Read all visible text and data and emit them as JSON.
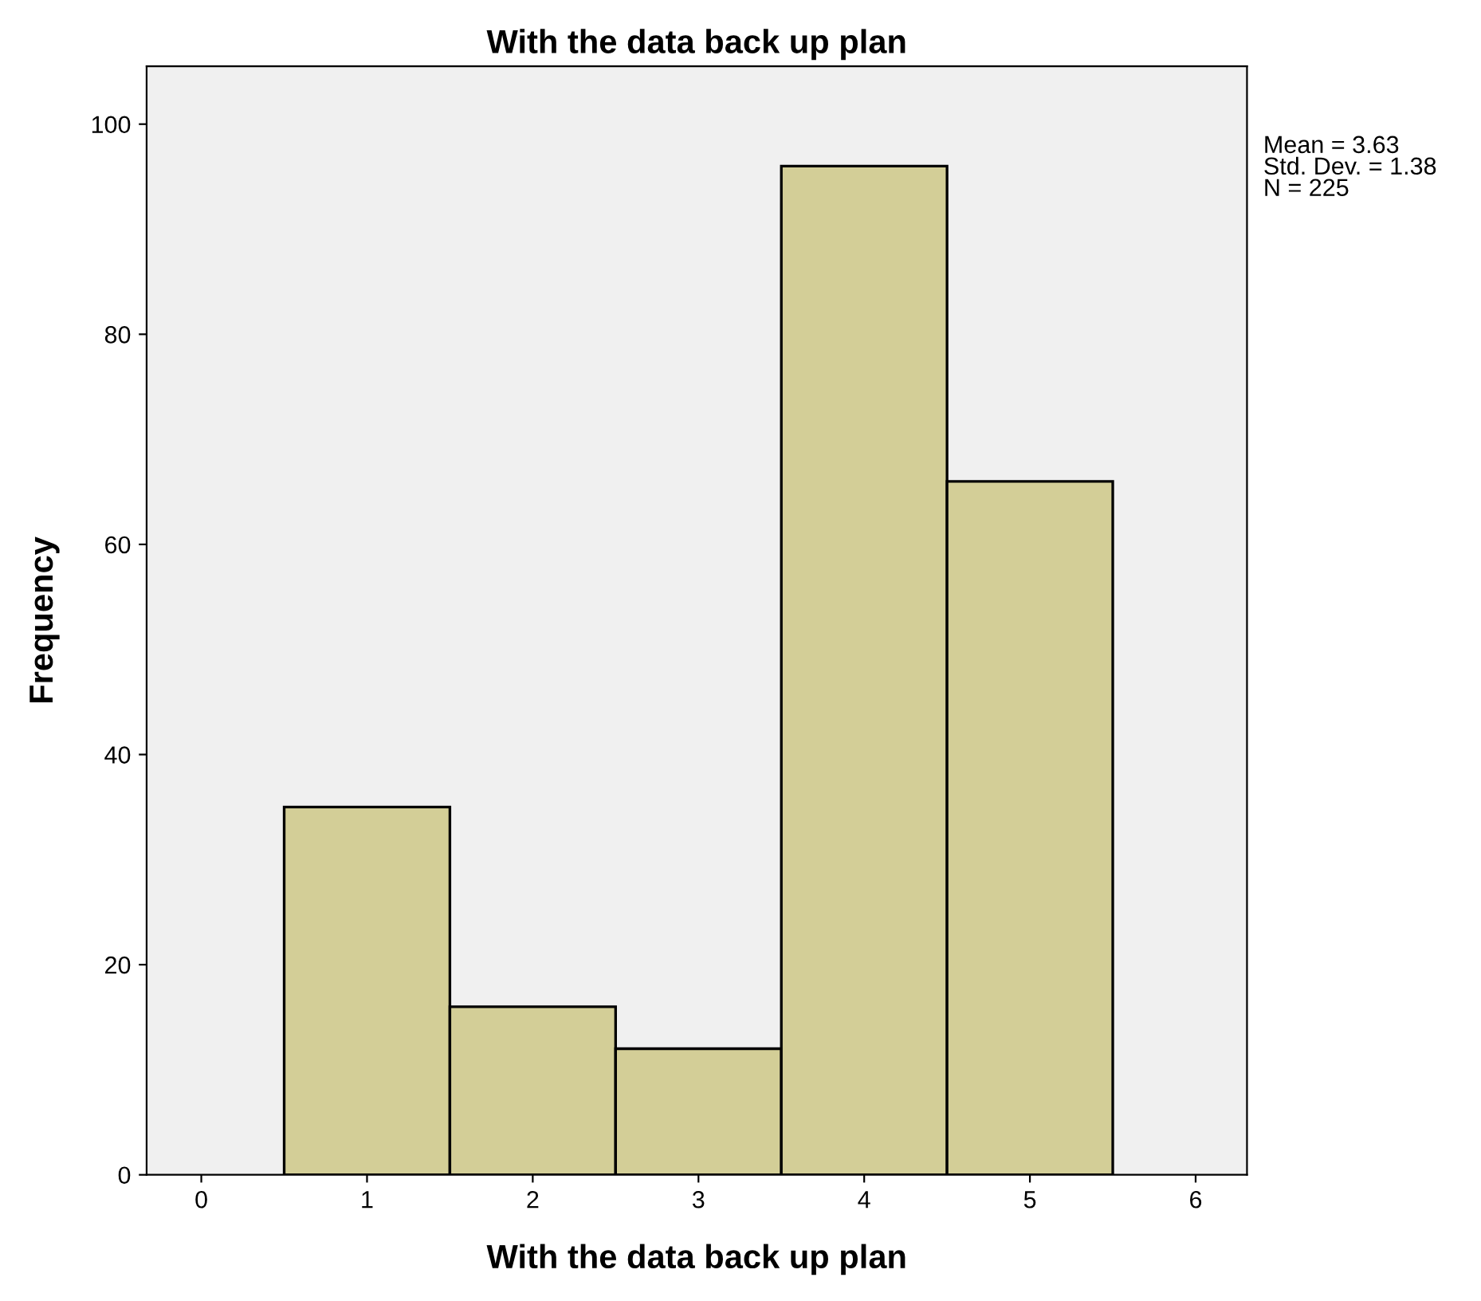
{
  "chart_data": {
    "type": "histogram",
    "title": "With the data back up plan",
    "xlabel": "With the data back up plan",
    "ylabel": "Frequency",
    "bins": [
      0.5,
      1.5,
      2.5,
      3.5,
      4.5,
      5.5
    ],
    "values": [
      35,
      16,
      12,
      96,
      66
    ],
    "color": "#d3ce97",
    "xlim": [
      -0.33,
      6.31
    ],
    "xticks": [
      0,
      1,
      2,
      3,
      4,
      5,
      6
    ],
    "ylim": [
      0,
      105.5
    ],
    "yticks": [
      0,
      20,
      40,
      60,
      80,
      100
    ],
    "grid": false,
    "legend": false,
    "annotations": [
      "Mean = 3.63",
      "Std. Dev. = 1.38",
      "N = 225"
    ]
  }
}
